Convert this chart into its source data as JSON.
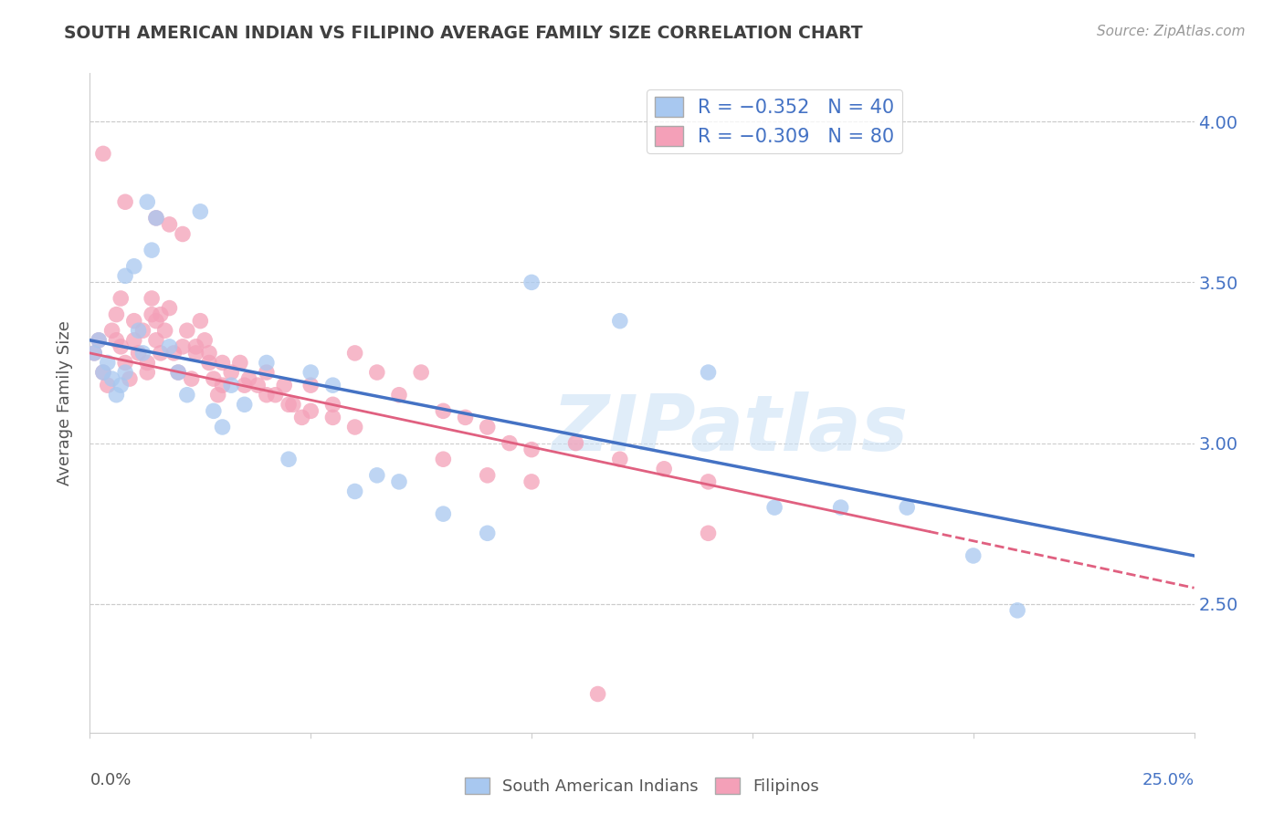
{
  "title": "SOUTH AMERICAN INDIAN VS FILIPINO AVERAGE FAMILY SIZE CORRELATION CHART",
  "source": "Source: ZipAtlas.com",
  "ylabel": "Average Family Size",
  "yticks": [
    2.5,
    3.0,
    3.5,
    4.0
  ],
  "xlim": [
    0.0,
    0.25
  ],
  "ylim": [
    2.1,
    4.15
  ],
  "watermark": "ZIPatlas",
  "legend_line1": "R = −0.352   N = 40",
  "legend_line2": "R = −0.309   N = 80",
  "blue_color": "#a8c8f0",
  "pink_color": "#f4a0b8",
  "blue_line_color": "#4472c4",
  "pink_line_color": "#e06080",
  "title_color": "#404040",
  "right_axis_color": "#4472c4",
  "grid_color": "#cccccc",
  "background_color": "#ffffff",
  "south_american_x": [
    0.001,
    0.002,
    0.003,
    0.004,
    0.005,
    0.006,
    0.007,
    0.008,
    0.008,
    0.01,
    0.011,
    0.012,
    0.013,
    0.014,
    0.015,
    0.018,
    0.02,
    0.022,
    0.025,
    0.028,
    0.03,
    0.032,
    0.035,
    0.04,
    0.045,
    0.05,
    0.055,
    0.06,
    0.065,
    0.07,
    0.08,
    0.09,
    0.1,
    0.12,
    0.14,
    0.155,
    0.17,
    0.185,
    0.2,
    0.21
  ],
  "south_american_y": [
    3.28,
    3.32,
    3.22,
    3.25,
    3.2,
    3.15,
    3.18,
    3.22,
    3.52,
    3.55,
    3.35,
    3.28,
    3.75,
    3.6,
    3.7,
    3.3,
    3.22,
    3.15,
    3.72,
    3.1,
    3.05,
    3.18,
    3.12,
    3.25,
    2.95,
    3.22,
    3.18,
    2.85,
    2.9,
    2.88,
    2.78,
    2.72,
    3.5,
    3.38,
    3.22,
    2.8,
    2.8,
    2.8,
    2.65,
    2.48
  ],
  "filipino_x": [
    0.001,
    0.002,
    0.003,
    0.004,
    0.005,
    0.006,
    0.006,
    0.007,
    0.007,
    0.008,
    0.009,
    0.01,
    0.01,
    0.011,
    0.012,
    0.013,
    0.013,
    0.014,
    0.014,
    0.015,
    0.015,
    0.016,
    0.016,
    0.017,
    0.018,
    0.019,
    0.02,
    0.021,
    0.022,
    0.023,
    0.024,
    0.025,
    0.026,
    0.027,
    0.028,
    0.029,
    0.03,
    0.032,
    0.034,
    0.036,
    0.038,
    0.04,
    0.042,
    0.044,
    0.046,
    0.048,
    0.05,
    0.055,
    0.06,
    0.065,
    0.07,
    0.075,
    0.08,
    0.085,
    0.09,
    0.095,
    0.1,
    0.11,
    0.12,
    0.13,
    0.14,
    0.003,
    0.008,
    0.015,
    0.018,
    0.021,
    0.024,
    0.027,
    0.03,
    0.035,
    0.04,
    0.045,
    0.05,
    0.055,
    0.06,
    0.08,
    0.09,
    0.1,
    0.14,
    0.115
  ],
  "filipino_y": [
    3.28,
    3.32,
    3.22,
    3.18,
    3.35,
    3.4,
    3.32,
    3.3,
    3.45,
    3.25,
    3.2,
    3.38,
    3.32,
    3.28,
    3.35,
    3.25,
    3.22,
    3.45,
    3.4,
    3.38,
    3.32,
    3.28,
    3.4,
    3.35,
    3.42,
    3.28,
    3.22,
    3.3,
    3.35,
    3.2,
    3.28,
    3.38,
    3.32,
    3.25,
    3.2,
    3.15,
    3.18,
    3.22,
    3.25,
    3.2,
    3.18,
    3.22,
    3.15,
    3.18,
    3.12,
    3.08,
    3.18,
    3.12,
    3.28,
    3.22,
    3.15,
    3.22,
    3.1,
    3.08,
    3.05,
    3.0,
    2.98,
    3.0,
    2.95,
    2.92,
    2.88,
    3.9,
    3.75,
    3.7,
    3.68,
    3.65,
    3.3,
    3.28,
    3.25,
    3.18,
    3.15,
    3.12,
    3.1,
    3.08,
    3.05,
    2.95,
    2.9,
    2.88,
    2.72,
    2.22
  ]
}
